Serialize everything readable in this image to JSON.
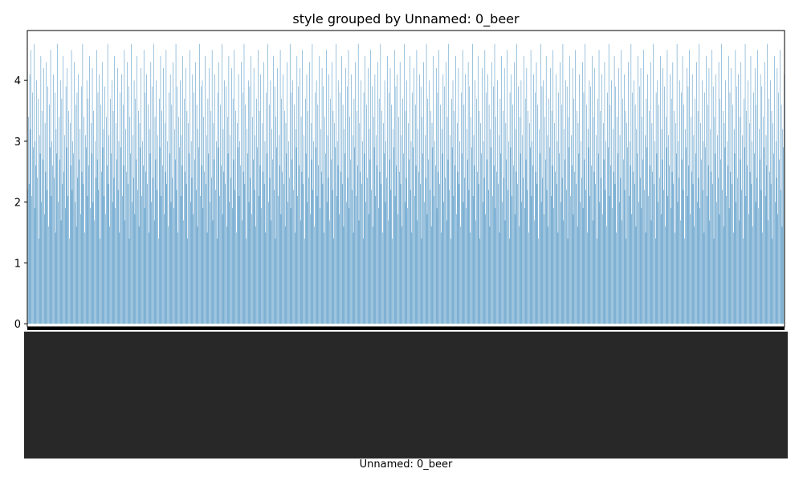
{
  "chart_data": {
    "type": "bar",
    "title": "style grouped by Unnamed: 0_beer",
    "xlabel": "Unnamed: 0_beer",
    "ylabel": "",
    "ylim": [
      -0.05,
      4.82
    ],
    "yticks": [
      0,
      1,
      2,
      3,
      4
    ],
    "legend": "none",
    "grid": false,
    "bar_color": "#1f77b4",
    "categories_note": "tick labels are dense, overlapping and illegible in the original",
    "values": [
      2.2,
      3.4,
      2.3,
      4.1,
      3.2,
      4.5,
      2.1,
      3.8,
      2.9,
      4.6,
      1.9,
      3.0,
      2.6,
      4.0,
      2.4,
      3.7,
      1.4,
      3.1,
      2.8,
      4.4,
      2.0,
      3.5,
      2.7,
      4.2,
      1.8,
      3.3,
      2.5,
      4.3,
      2.2,
      3.9,
      1.6,
      3.6,
      2.9,
      4.5,
      2.1,
      3.0,
      2.6,
      4.1,
      2.4,
      3.8,
      1.5,
      3.2,
      2.8,
      4.6,
      2.0,
      3.4,
      2.7,
      4.0,
      1.7,
      3.7,
      2.3,
      4.4,
      2.5,
      3.1,
      1.9,
      3.9,
      2.9,
      4.2,
      2.1,
      3.5,
      1.4,
      3.3,
      2.6,
      4.5,
      2.2,
      3.0,
      2.8,
      4.3,
      2.0,
      3.6,
      1.6,
      3.8,
      2.4,
      4.1,
      2.7,
      3.2,
      1.8,
      3.9,
      2.5,
      4.6,
      2.3,
      3.4,
      1.5,
      3.1,
      2.9,
      4.0,
      2.1,
      3.7,
      2.6,
      4.4,
      1.9,
      3.3,
      2.8,
      4.2,
      2.0,
      3.5,
      1.7,
      3.0,
      2.4,
      4.5,
      2.7,
      3.8,
      2.2,
      4.1,
      1.4,
      3.6,
      2.5,
      4.3,
      2.9,
      3.2,
      2.1,
      3.9,
      1.8,
      3.4,
      2.6,
      4.6,
      2.3,
      3.1,
      1.6,
      3.7,
      2.8,
      4.0,
      2.0,
      3.5,
      2.4,
      4.4,
      1.9,
      3.3,
      2.7,
      4.2,
      2.2,
      3.0,
      1.5,
      3.8,
      2.9,
      4.1,
      2.1,
      3.6,
      2.6,
      4.5,
      1.7,
      3.2,
      2.5,
      4.3,
      2.3,
      3.9,
      1.4,
      3.4,
      2.8,
      4.6,
      2.0,
      3.1,
      2.4,
      4.0,
      1.8,
      3.7,
      2.7,
      4.4,
      2.2,
      3.5,
      1.6,
      3.3,
      2.9,
      4.2,
      2.1,
      3.0,
      2.6,
      4.5,
      1.9,
      3.8,
      2.5,
      4.1,
      2.3,
      3.6,
      1.5,
      3.2,
      2.8,
      4.3,
      2.0,
      3.9,
      2.4,
      4.6,
      1.7,
      3.4,
      2.7,
      4.0,
      2.2,
      3.1,
      1.4,
      3.7,
      2.9,
      4.4,
      2.1,
      3.5,
      2.6,
      4.2,
      1.8,
      3.3,
      2.5,
      4.5,
      2.3,
      3.0,
      1.6,
      3.8,
      2.8,
      4.1,
      2.0,
      3.6,
      2.4,
      4.3,
      1.9,
      3.2,
      2.7,
      4.6,
      2.2,
      3.9,
      1.5,
      3.4,
      2.9,
      4.0,
      2.1,
      3.1,
      2.6,
      4.4,
      1.7,
      3.7,
      2.5,
      4.2,
      2.3,
      3.5,
      1.4,
      3.3,
      2.8,
      4.5,
      2.0,
      3.0,
      2.4,
      4.1,
      1.8,
      3.8,
      2.7,
      4.3,
      2.2,
      3.6,
      1.6,
      3.2,
      2.9,
      4.6,
      2.1,
      3.9,
      2.6,
      4.0,
      1.9,
      3.4,
      2.5,
      4.4,
      2.3,
      3.1,
      1.5,
      3.7,
      2.8,
      4.2,
      2.0,
      3.5,
      2.4,
      4.5,
      1.7,
      3.3,
      2.7,
      4.1,
      2.2,
      3.0,
      1.4,
      3.8,
      2.9,
      4.3,
      2.1,
      3.6,
      2.6,
      4.6,
      1.8,
      3.2,
      2.5,
      4.0,
      2.3,
      3.9,
      1.6,
      3.4,
      2.8,
      4.4,
      2.0,
      3.1,
      2.4,
      4.2,
      1.9,
      3.7,
      2.7,
      4.5,
      2.2,
      3.5,
      1.5,
      3.3,
      2.9,
      4.1,
      2.1,
      3.0,
      2.6,
      4.3,
      1.7,
      3.8,
      2.5,
      4.6,
      2.3,
      3.6,
      1.4,
      3.2,
      2.8,
      4.0,
      2.0,
      3.9,
      2.4,
      4.4,
      1.8,
      3.4,
      2.7,
      4.2,
      2.2,
      3.1,
      1.6,
      3.7,
      2.9,
      4.5,
      2.1,
      3.5,
      2.6,
      4.1,
      1.9,
      3.3,
      2.5,
      4.3,
      2.3,
      3.0,
      1.5,
      3.8,
      2.8,
      4.6,
      2.0,
      3.6,
      2.4,
      4.0,
      1.7,
      3.2,
      2.7,
      4.4,
      2.2,
      3.9,
      1.4,
      3.4,
      2.9,
      4.2,
      2.1,
      3.1,
      2.6,
      4.5,
      1.8,
      3.7,
      2.5,
      4.1,
      2.3,
      3.5,
      1.6,
      3.3,
      2.8,
      4.3,
      2.0,
      3.0,
      2.4,
      4.6,
      1.9,
      3.8,
      2.7,
      4.0,
      2.2,
      3.6,
      1.5,
      3.2,
      2.9,
      4.4,
      2.1,
      3.9,
      2.6,
      4.2,
      1.7,
      3.4,
      2.5,
      4.5,
      2.3,
      3.1,
      1.4,
      3.7,
      2.8,
      4.1,
      2.0,
      3.5,
      2.4,
      4.3,
      1.8,
      3.3,
      2.7,
      4.6,
      2.2,
      3.0,
      1.6,
      3.8,
      2.9,
      4.0,
      2.1,
      3.6,
      2.6,
      4.4,
      1.9,
      3.2,
      2.5,
      4.2,
      2.3,
      3.9,
      1.5,
      3.4,
      2.8,
      4.5,
      2.0,
      3.1,
      2.4,
      4.1,
      1.7,
      3.7,
      2.7,
      4.3,
      2.2,
      3.5,
      1.4,
      3.3,
      2.9,
      4.6,
      2.1,
      3.0,
      2.6,
      4.0,
      1.8,
      3.8,
      2.5,
      4.4,
      2.3,
      3.6,
      1.6,
      3.2,
      2.8,
      4.2,
      2.0,
      3.9,
      2.4,
      4.5,
      1.9,
      3.4,
      2.7,
      4.1,
      2.2,
      3.1,
      1.5,
      3.7,
      2.9,
      4.3,
      2.1,
      3.5,
      2.6,
      4.6,
      1.7,
      3.3,
      2.5,
      4.0,
      2.3,
      3.0,
      1.4,
      3.8,
      2.8,
      4.4,
      2.0,
      3.6,
      2.4,
      4.2,
      1.8,
      3.2,
      2.7,
      4.5,
      2.2,
      3.9,
      1.6,
      3.4,
      2.9,
      4.1,
      2.1,
      3.1,
      2.6,
      4.3,
      1.9,
      3.7,
      2.5,
      4.6,
      2.3,
      3.5,
      1.5,
      3.3,
      2.8,
      4.0,
      2.0,
      3.0,
      2.4,
      4.4,
      1.7,
      3.8,
      2.7,
      4.2,
      2.2,
      3.6,
      1.4,
      3.2,
      2.9,
      4.5,
      2.1,
      3.9,
      2.6,
      4.1,
      1.8,
      3.4,
      2.5,
      4.3,
      2.3,
      3.1,
      1.6,
      3.7,
      2.8,
      4.6,
      2.0,
      3.5,
      2.4,
      4.0,
      1.9,
      3.3,
      2.7,
      4.4,
      2.2,
      3.0,
      1.5,
      3.8,
      2.9,
      4.2,
      2.1,
      3.6,
      2.6,
      4.5,
      1.7,
      3.2,
      2.5,
      4.1,
      2.3,
      3.9,
      1.4,
      3.4,
      2.8,
      4.3,
      2.0,
      3.1,
      2.4,
      4.6,
      1.8,
      3.7,
      2.7,
      4.0,
      2.2,
      3.5,
      1.6,
      3.3,
      2.9,
      4.4,
      2.1,
      3.0,
      2.6,
      4.2,
      1.9,
      3.8,
      2.5,
      4.5,
      2.3,
      3.6,
      1.5,
      3.2,
      2.8,
      4.1,
      2.0,
      3.9,
      2.4,
      4.3,
      1.7,
      3.4,
      2.7,
      4.6,
      2.2,
      3.1,
      1.4,
      3.7,
      2.9,
      4.0,
      2.1,
      3.5,
      2.6,
      4.4,
      1.8,
      3.3,
      2.5,
      4.2,
      2.3,
      3.0,
      1.6,
      3.8,
      2.8,
      4.5,
      2.0,
      3.6,
      2.4,
      4.1,
      1.9,
      3.2,
      2.7,
      4.3,
      2.2,
      3.9,
      1.5,
      3.4,
      2.9,
      4.6,
      2.1,
      3.1,
      2.6,
      4.0,
      1.7,
      3.7,
      2.5,
      4.4,
      2.3,
      3.5,
      1.4,
      3.3,
      2.8,
      4.2,
      2.0,
      3.0,
      2.4,
      4.5,
      1.8,
      3.8,
      2.7,
      4.1,
      2.2,
      3.6,
      1.6,
      3.2,
      2.9,
      4.3,
      2.1,
      3.9,
      2.6,
      4.6,
      1.9,
      3.4,
      2.5,
      4.0,
      2.3,
      3.1,
      1.5,
      3.7,
      2.8,
      4.4,
      2.0,
      3.5,
      2.4,
      4.2,
      1.7,
      3.3,
      2.7,
      4.5,
      2.2,
      3.0,
      1.4,
      3.8,
      2.9,
      4.1,
      2.1,
      3.6,
      2.6,
      4.3,
      1.8,
      3.2,
      2.5,
      4.6,
      2.3,
      3.9,
      1.6,
      3.4,
      2.8,
      4.0,
      2.0,
      3.1,
      2.4,
      4.4,
      1.9,
      3.7,
      2.7,
      4.2,
      2.2,
      3.5,
      1.5,
      3.3,
      2.9,
      4.5,
      2.1,
      3.0,
      2.6,
      4.1,
      1.7,
      3.8,
      2.5,
      4.3,
      2.3,
      3.6,
      1.4,
      3.2,
      2.8,
      4.6,
      2.0,
      3.9,
      2.4,
      4.0,
      1.8,
      3.4,
      2.7,
      4.4,
      2.2,
      3.1,
      1.6,
      3.7,
      2.9,
      4.2,
      2.1,
      3.5,
      2.6,
      4.5,
      1.9,
      3.3,
      2.5,
      4.1,
      2.3,
      3.0,
      1.5,
      3.8,
      2.8,
      4.3,
      2.0,
      3.6,
      2.4,
      4.6,
      1.7,
      3.2,
      2.7,
      4.0,
      2.2,
      3.9,
      1.4,
      3.4,
      2.9,
      4.4,
      2.1,
      3.1,
      2.6,
      4.2,
      1.8,
      3.7,
      2.5,
      4.5,
      2.3,
      3.5,
      1.6,
      3.3,
      2.8,
      4.1,
      2.0,
      3.0,
      2.4,
      4.3,
      1.9,
      3.8,
      2.7,
      4.6,
      2.2,
      3.6,
      1.5,
      3.2,
      2.9,
      4.0,
      2.1,
      3.9,
      2.6,
      4.4,
      1.7,
      3.4,
      2.5,
      4.2,
      2.3,
      3.1,
      1.4,
      3.7,
      2.8,
      4.5,
      2.0,
      3.5,
      2.4,
      4.1,
      1.8,
      3.3,
      2.7,
      4.3,
      2.2,
      3.0,
      1.6,
      3.8,
      2.9,
      4.6,
      2.1,
      3.6,
      2.6,
      4.0,
      1.9,
      3.2,
      2.5,
      4.4,
      2.3,
      3.9,
      1.5,
      3.4,
      2.8,
      4.2,
      2.0,
      3.1,
      2.4,
      4.5,
      1.7,
      3.7,
      2.7,
      4.1,
      2.2,
      3.5,
      1.4,
      3.3,
      2.9,
      4.3,
      2.1,
      3.0,
      2.6,
      4.6,
      1.8,
      3.8,
      2.5,
      4.0,
      2.3,
      3.6,
      1.6,
      3.2,
      2.8,
      4.4,
      2.0,
      3.9,
      2.4,
      4.2,
      1.9,
      3.4,
      2.7,
      4.5,
      2.2,
      3.1,
      1.5,
      3.7,
      2.9,
      4.1,
      2.1,
      3.5,
      2.6,
      4.3,
      1.7,
      3.3,
      2.5,
      4.6,
      2.3,
      3.0,
      1.4,
      3.8,
      2.8,
      4.0,
      2.0,
      3.6,
      2.4,
      4.4,
      1.8,
      3.2,
      2.7,
      4.2,
      2.2,
      3.9,
      1.6,
      3.4,
      2.9,
      4.5,
      2.1,
      3.1,
      2.6,
      4.1,
      1.9,
      3.7,
      2.5,
      4.3,
      2.3,
      3.5,
      1.5,
      3.3,
      2.8,
      4.6,
      2.0,
      3.0,
      2.4,
      4.0,
      1.7,
      3.8,
      2.7,
      4.4,
      2.2,
      3.6,
      1.4,
      3.2,
      2.9,
      4.2,
      2.1,
      3.9,
      2.6,
      4.5,
      1.8,
      3.4,
      2.5,
      4.1,
      2.3,
      3.1,
      1.6,
      3.7,
      2.8,
      4.3,
      2.0,
      3.5,
      2.4,
      4.6,
      1.9,
      3.3,
      2.7,
      4.0,
      2.2,
      3.0,
      1.5,
      3.8,
      2.9,
      4.4,
      2.1,
      3.6,
      2.6,
      4.2,
      1.7,
      3.2,
      2.5,
      4.5,
      2.3,
      3.9,
      1.4,
      3.4,
      2.8,
      4.1,
      2.0,
      3.1,
      2.4,
      4.3,
      1.8,
      3.7,
      2.7,
      4.6,
      2.2,
      3.5,
      1.6,
      3.3,
      2.9,
      4.0,
      2.1,
      3.0,
      2.6,
      4.4,
      1.9,
      3.8,
      2.5,
      4.2,
      2.3,
      3.6,
      1.5,
      3.2,
      2.8,
      4.5,
      2.0,
      3.9,
      2.4,
      4.1,
      1.7,
      3.4,
      2.7,
      4.3,
      2.2,
      3.1,
      1.4,
      3.7,
      2.9,
      4.6,
      2.1,
      3.5,
      2.6,
      4.0,
      1.8,
      3.3,
      2.5,
      4.4,
      2.3,
      3.0,
      1.6,
      3.8,
      2.8,
      4.2,
      2.0,
      3.6,
      2.4,
      4.5,
      1.9,
      3.2,
      2.7,
      4.1,
      2.2,
      3.9,
      1.5,
      3.4,
      2.9,
      4.3,
      2.1,
      3.1,
      2.6,
      4.6,
      1.7,
      3.7,
      2.5,
      4.0,
      2.3,
      3.5,
      1.4,
      3.3,
      2.8,
      4.4,
      2.0,
      3.0,
      2.4,
      4.2,
      1.8,
      3.8,
      2.7,
      4.5,
      2.2,
      3.6,
      1.6,
      3.2,
      2.9,
      4.1
    ]
  }
}
